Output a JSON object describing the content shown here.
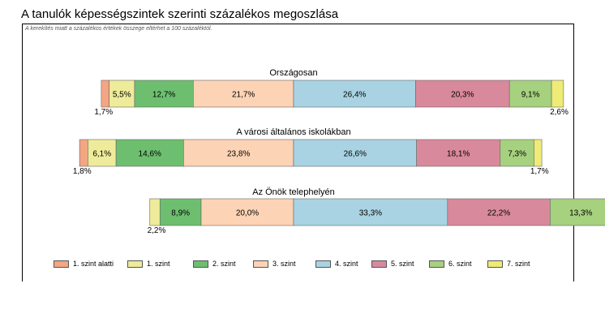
{
  "page": {
    "title": "A tanulók képességszintek szerinti százalékos megoszlása",
    "note": "A kerekítés miatt a százalékos értékek összege eltérhet a 100 százaléktól."
  },
  "chart_data": {
    "type": "bar",
    "orientation": "horizontal-stacked",
    "grid": false,
    "legend_position": "bottom",
    "categories": [
      "Országosan",
      "A városi általános iskolákban",
      "Az Önök telephelyén"
    ],
    "series": [
      {
        "name": "1. szint alatti",
        "color": "#f4a582",
        "values": [
          1.7,
          1.8,
          0.0
        ],
        "labels": [
          "1,7%",
          "1,8%",
          ""
        ]
      },
      {
        "name": "1. szint",
        "color": "#eeeb9a",
        "values": [
          5.5,
          6.1,
          2.2
        ],
        "labels": [
          "5,5%",
          "6,1%",
          "2,2%"
        ]
      },
      {
        "name": "2. szint",
        "color": "#6dbf6f",
        "values": [
          12.7,
          14.6,
          8.9
        ],
        "labels": [
          "12,7%",
          "14,6%",
          "8,9%"
        ]
      },
      {
        "name": "3. szint",
        "color": "#fcd3b5",
        "values": [
          21.7,
          23.8,
          20.0
        ],
        "labels": [
          "21,7%",
          "23,8%",
          "20,0%"
        ]
      },
      {
        "name": "4. szint",
        "color": "#a9d3e3",
        "values": [
          26.4,
          26.6,
          33.3
        ],
        "labels": [
          "26,4%",
          "26,6%",
          "33,3%"
        ]
      },
      {
        "name": "5. szint",
        "color": "#d9899c",
        "values": [
          20.3,
          18.1,
          22.2
        ],
        "labels": [
          "20,3%",
          "18,1%",
          "22,2%"
        ]
      },
      {
        "name": "6. szint",
        "color": "#a6d17f",
        "values": [
          9.1,
          7.3,
          13.3
        ],
        "labels": [
          "9,1%",
          "7,3%",
          "13,3%"
        ]
      },
      {
        "name": "7. szint",
        "color": "#eeeb77",
        "values": [
          2.6,
          1.7,
          0.0
        ],
        "labels": [
          "2,6%",
          "1,7%",
          ""
        ]
      }
    ]
  }
}
